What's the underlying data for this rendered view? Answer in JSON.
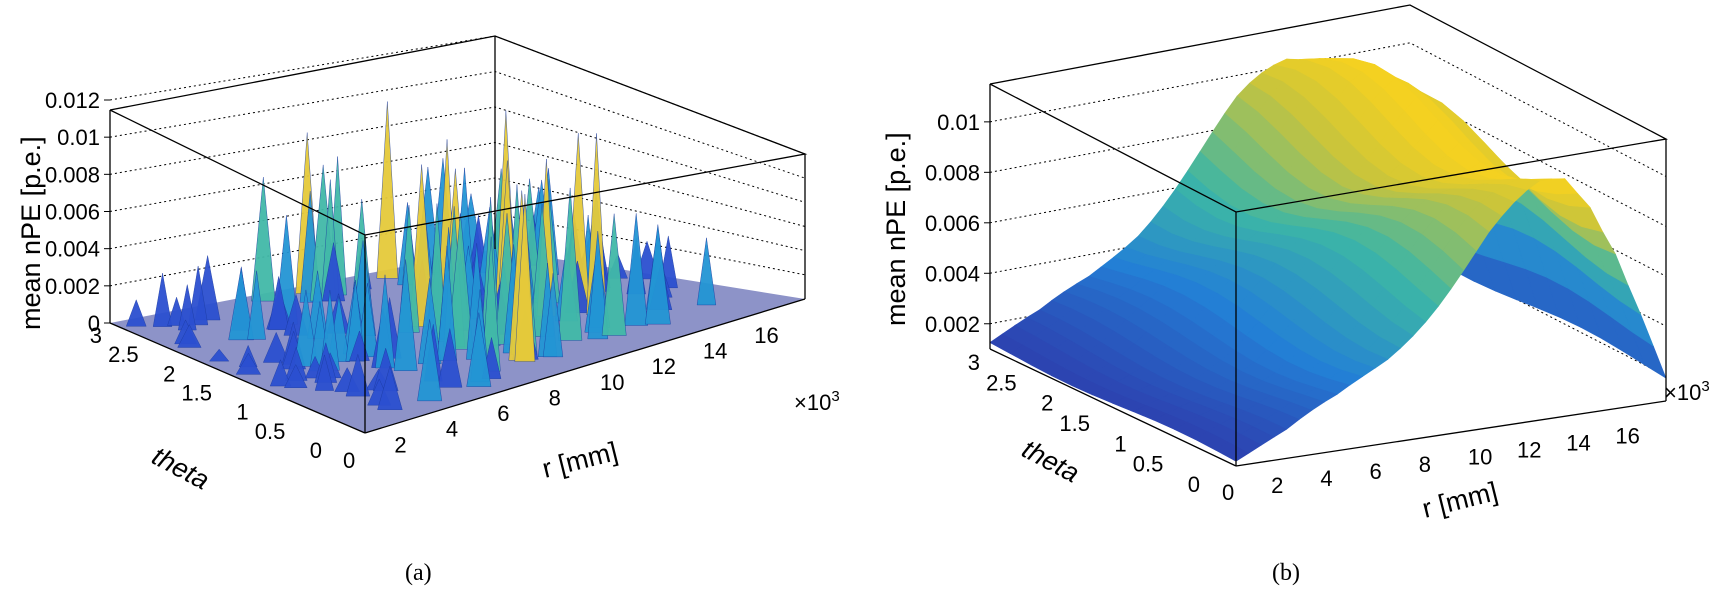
{
  "chart_data": [
    {
      "type": "surface",
      "panel": "(a)",
      "zlabel": "mean nPE [p.e.]",
      "ylabel": "theta",
      "xlabel": "r [mm]",
      "x_multiplier": "×10",
      "x_multiplier_exp": "3",
      "x_ticks": [
        "0",
        "2",
        "4",
        "6",
        "8",
        "10",
        "12",
        "14",
        "16"
      ],
      "y_ticks": [
        "0",
        "0.5",
        "1",
        "1.5",
        "2",
        "2.5",
        "3"
      ],
      "z_ticks": [
        "0",
        "0.002",
        "0.004",
        "0.006",
        "0.008",
        "0.01",
        "0.012"
      ],
      "xlim": [
        0,
        17
      ],
      "ylim": [
        0,
        3
      ],
      "zlim": [
        0,
        0.012
      ],
      "description_values": {
        "r_k": [
          0.5,
          2,
          4,
          6,
          8,
          10,
          12,
          14,
          16
        ],
        "peak_max_by_r": [
          0.002,
          0.004,
          0.006,
          0.008,
          0.01,
          0.011,
          0.011,
          0.009,
          0.005
        ]
      }
    },
    {
      "type": "surface",
      "panel": "(b)",
      "zlabel": "mean nPE [p.e.]",
      "ylabel": "theta",
      "xlabel": "r [mm]",
      "x_multiplier": "×10",
      "x_multiplier_exp": "3",
      "x_ticks": [
        "0",
        "2",
        "4",
        "6",
        "8",
        "10",
        "12",
        "14",
        "16"
      ],
      "y_ticks": [
        "0",
        "0.5",
        "1",
        "1.5",
        "2",
        "2.5",
        "3"
      ],
      "z_ticks": [
        "0.002",
        "0.004",
        "0.006",
        "0.008",
        "0.01"
      ],
      "xlim": [
        0,
        17
      ],
      "ylim": [
        0,
        3
      ],
      "zlim": [
        0.001,
        0.0115
      ],
      "profile": {
        "r_k": [
          0,
          2,
          4,
          6,
          8,
          10,
          12,
          13,
          14,
          15,
          16,
          17
        ],
        "value": [
          0.0013,
          0.0022,
          0.0035,
          0.0052,
          0.0072,
          0.0092,
          0.0108,
          0.0112,
          0.0104,
          0.0085,
          0.0055,
          0.0022
        ]
      }
    }
  ],
  "captions": [
    "(a)",
    "(b)"
  ]
}
